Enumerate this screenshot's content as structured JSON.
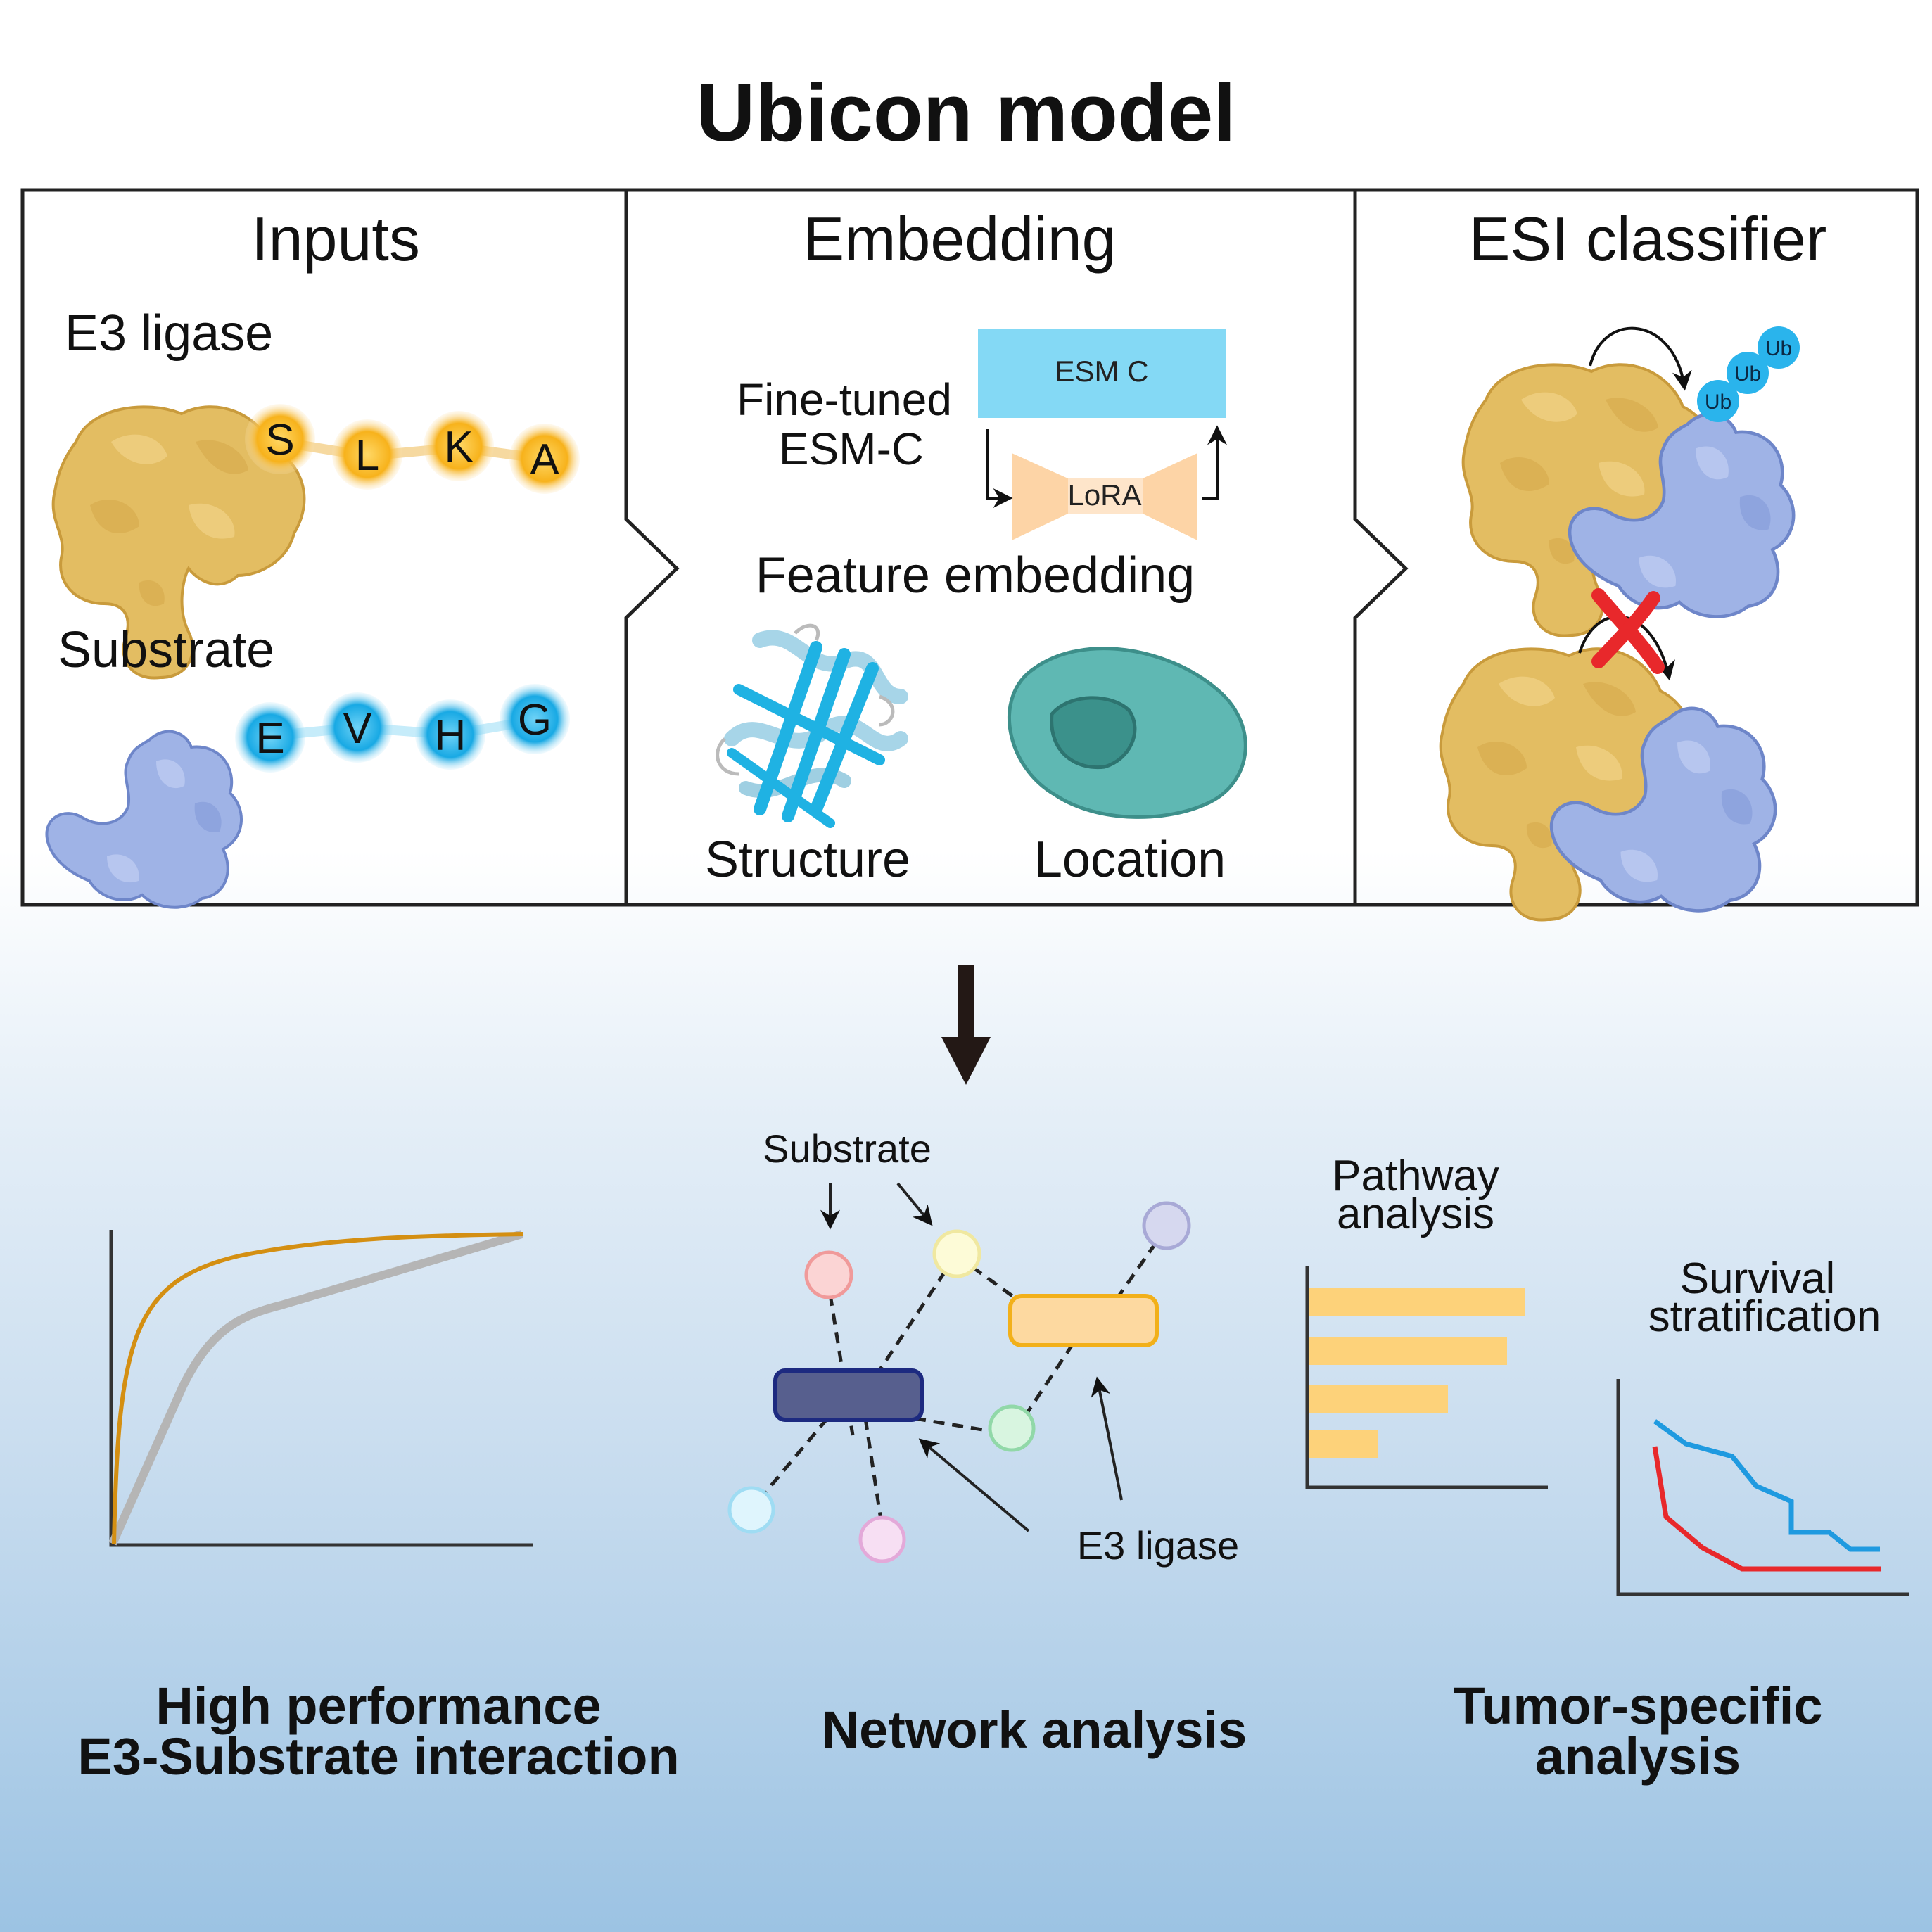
{
  "title": "Ubicon model",
  "panels": {
    "inputs": {
      "heading": "Inputs",
      "e3_label": "E3 ligase",
      "e3_residues": [
        "S",
        "L",
        "K",
        "A"
      ],
      "substrate_label": "Substrate",
      "substrate_residues": [
        "E",
        "V",
        "H",
        "G"
      ]
    },
    "embedding": {
      "heading": "Embedding",
      "finetuned_line1": "Fine-tuned",
      "finetuned_line2": "ESM-C",
      "esm_box": "ESM C",
      "lora": "LoRA",
      "feature_embedding": "Feature embedding",
      "structure": "Structure",
      "location": "Location"
    },
    "classifier": {
      "heading": "ESI classifier",
      "ub_labels": [
        "Ub",
        "Ub",
        "Ub"
      ]
    }
  },
  "outputs": {
    "network": {
      "substrate_label": "Substrate",
      "e3_label": "E3 ligase",
      "caption": "Network analysis"
    },
    "performance": {
      "caption_line1": "High performance",
      "caption_line2": "E3-Substrate interaction"
    },
    "tumor": {
      "pathway_line1": "Pathway",
      "pathway_line2": "analysis",
      "survival_line1": "Survival",
      "survival_line2": "stratification",
      "caption_line1": "Tumor-specific",
      "caption_line2": "analysis"
    }
  },
  "colors": {
    "e3_protein": "#e3bd62",
    "substrate_protein": "#9fb3e6",
    "e3_residue": "#f7b21b",
    "substrate_residue": "#22b3e8",
    "esm_box": "#84d9f5",
    "lora": "#fdd4a6",
    "cell": "#5fb8b3",
    "nucleus": "#3b918b",
    "cross": "#e8282b",
    "roc_model": "#d48f12",
    "roc_base": "#b5b5b5",
    "bars": "#fdd27a",
    "survival_high": "#1f9ae0",
    "survival_low": "#e8282b"
  }
}
